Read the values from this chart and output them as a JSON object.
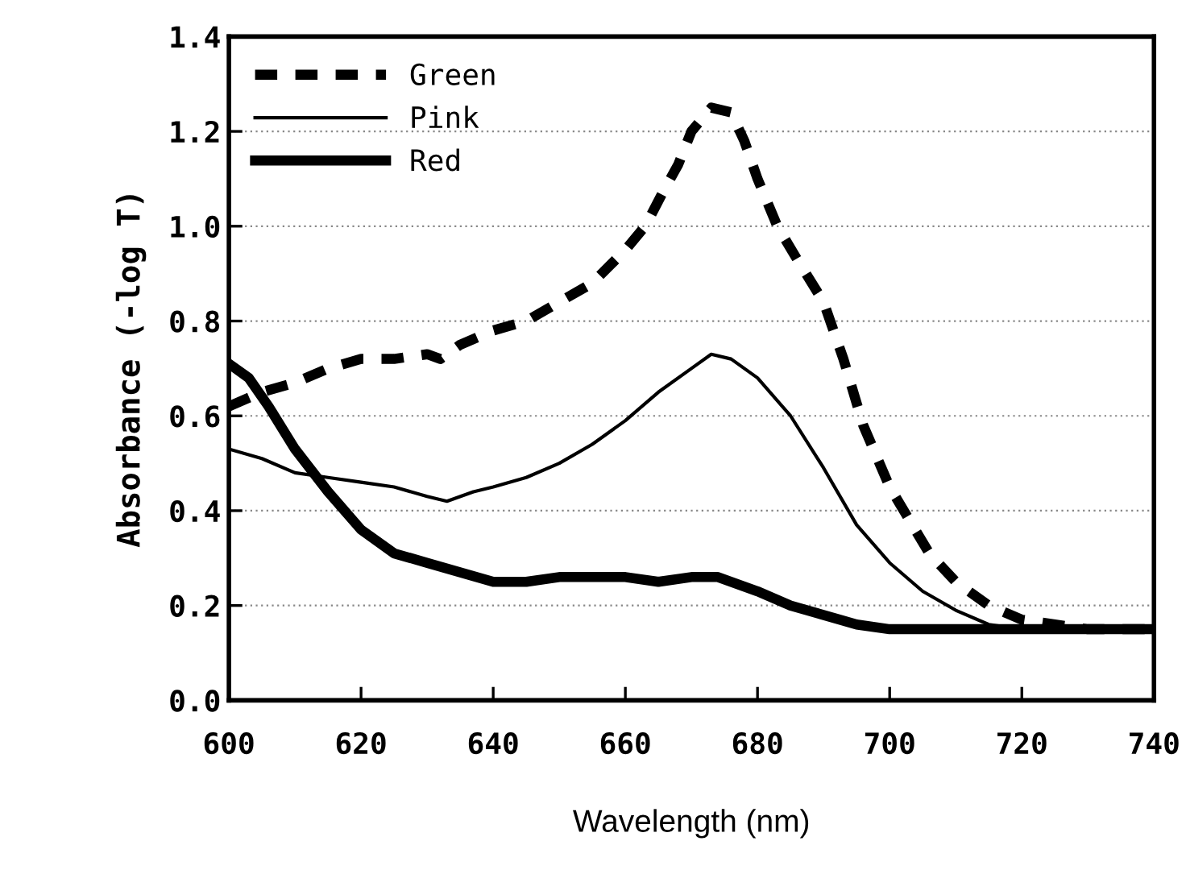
{
  "chart_data": {
    "type": "line",
    "xlabel": "Wavelength (nm)",
    "ylabel": "Absorbance (-log T)",
    "xlim": [
      600,
      740
    ],
    "xticks": [
      600,
      620,
      640,
      660,
      680,
      700,
      720,
      740
    ],
    "ylim": [
      0,
      1.4
    ],
    "yticks": [
      {
        "value": 0,
        "label": "0.0"
      },
      0.2,
      0.4,
      0.6,
      0.8,
      {
        "value": 1,
        "label": "1.0"
      },
      1.2,
      1.4
    ],
    "grid": "y",
    "legend": "top left",
    "marker": "none",
    "series": [
      {
        "name": "Green",
        "color": "#000000",
        "line_style": "dashed",
        "x": [
          600,
          605,
          610,
          615,
          620,
          625,
          630,
          632,
          635,
          640,
          645,
          650,
          655,
          660,
          663,
          666,
          668,
          670,
          673,
          676,
          678,
          680,
          683,
          686,
          690,
          693,
          696,
          700,
          703,
          706,
          710,
          715,
          720,
          725,
          730,
          740
        ],
        "values": [
          0.62,
          0.65,
          0.67,
          0.7,
          0.72,
          0.72,
          0.73,
          0.72,
          0.75,
          0.78,
          0.8,
          0.84,
          0.88,
          0.95,
          1.0,
          1.08,
          1.13,
          1.2,
          1.25,
          1.24,
          1.18,
          1.1,
          1.0,
          0.93,
          0.84,
          0.72,
          0.58,
          0.45,
          0.38,
          0.31,
          0.25,
          0.2,
          0.17,
          0.16,
          0.15,
          0.15
        ]
      },
      {
        "name": "Pink",
        "color": "#000000",
        "line_style": "solid",
        "x": [
          600,
          605,
          610,
          615,
          620,
          625,
          630,
          633,
          637,
          640,
          645,
          650,
          655,
          660,
          665,
          670,
          673,
          676,
          680,
          685,
          690,
          695,
          700,
          705,
          710,
          715,
          720,
          730,
          740
        ],
        "values": [
          0.53,
          0.51,
          0.48,
          0.47,
          0.46,
          0.45,
          0.43,
          0.42,
          0.44,
          0.45,
          0.47,
          0.5,
          0.54,
          0.59,
          0.65,
          0.7,
          0.73,
          0.72,
          0.68,
          0.6,
          0.49,
          0.37,
          0.29,
          0.23,
          0.19,
          0.16,
          0.15,
          0.15,
          0.15
        ]
      },
      {
        "name": "Red",
        "color": "#000000",
        "line_style": "solid",
        "x": [
          600,
          603,
          606,
          610,
          615,
          620,
          625,
          630,
          635,
          640,
          645,
          650,
          655,
          660,
          665,
          670,
          674,
          680,
          685,
          690,
          695,
          700,
          710,
          720,
          740
        ],
        "values": [
          0.71,
          0.68,
          0.62,
          0.53,
          0.44,
          0.36,
          0.31,
          0.29,
          0.27,
          0.25,
          0.25,
          0.26,
          0.26,
          0.26,
          0.25,
          0.26,
          0.26,
          0.23,
          0.2,
          0.18,
          0.16,
          0.15,
          0.15,
          0.15,
          0.15
        ]
      }
    ]
  }
}
